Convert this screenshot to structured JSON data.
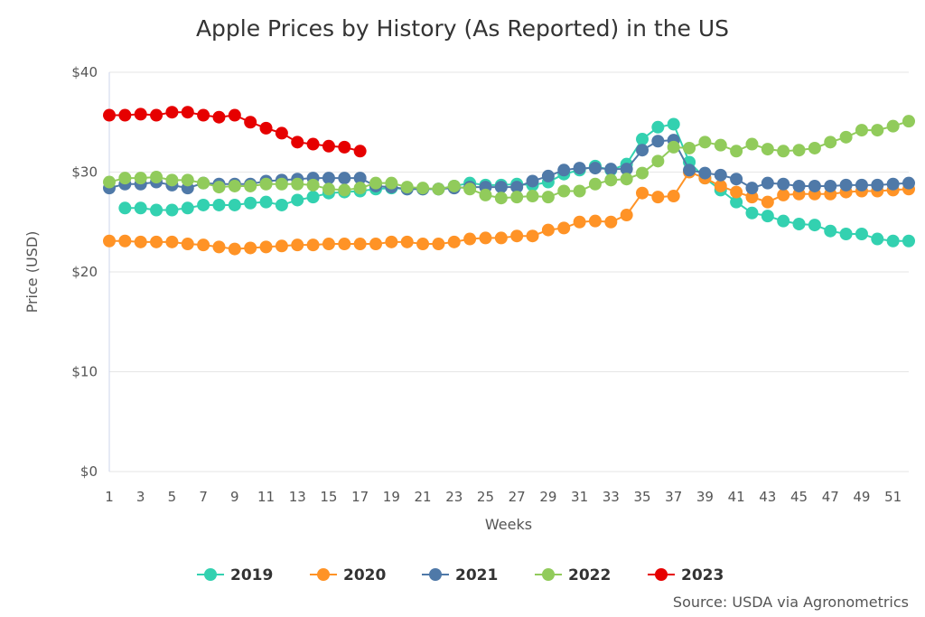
{
  "chart_data": {
    "type": "line",
    "title": "Apple Prices by History (As Reported) in the US",
    "xlabel": "Weeks",
    "ylabel": "Price (USD)",
    "source": "Source: USDA via Agronometrics",
    "xlim": [
      1,
      52
    ],
    "ylim": [
      0,
      40
    ],
    "x_tick_labels": [
      "1",
      "3",
      "5",
      "7",
      "9",
      "11",
      "13",
      "15",
      "17",
      "19",
      "21",
      "23",
      "25",
      "27",
      "29",
      "31",
      "33",
      "35",
      "37",
      "39",
      "41",
      "43",
      "45",
      "47",
      "49",
      "51"
    ],
    "y_ticks": [
      0,
      10,
      20,
      30,
      40
    ],
    "y_tick_labels": [
      "$0",
      "$10",
      "$20",
      "$30",
      "$40"
    ],
    "grid": true,
    "legend_position": "bottom",
    "series": [
      {
        "name": "2019",
        "color": "#33d1b0",
        "start_week": 2,
        "values": [
          26.4,
          26.4,
          26.2,
          26.2,
          26.4,
          26.7,
          26.7,
          26.7,
          26.9,
          27.0,
          26.7,
          27.2,
          27.5,
          27.9,
          28.0,
          28.1,
          28.3,
          28.4,
          28.3,
          28.3,
          28.3,
          28.6,
          28.9,
          28.7,
          28.7,
          28.8,
          28.7,
          29.0,
          29.8,
          30.2,
          30.6,
          30.2,
          30.8,
          33.3,
          34.5,
          34.8,
          31.0,
          29.4,
          28.2,
          27.0,
          25.9,
          25.6,
          25.1,
          24.8,
          24.7,
          24.1,
          23.8,
          23.8,
          23.3,
          23.1,
          23.1
        ]
      },
      {
        "name": "2020",
        "color": "#ff9326",
        "start_week": 1,
        "values": [
          23.1,
          23.1,
          23.0,
          23.0,
          23.0,
          22.8,
          22.7,
          22.5,
          22.3,
          22.4,
          22.5,
          22.6,
          22.7,
          22.7,
          22.8,
          22.8,
          22.8,
          22.8,
          23.0,
          23.0,
          22.8,
          22.8,
          23.0,
          23.3,
          23.4,
          23.4,
          23.6,
          23.6,
          24.2,
          24.4,
          25.0,
          25.1,
          25.0,
          25.7,
          27.9,
          27.5,
          27.6,
          30.0,
          29.4,
          28.6,
          28.0,
          27.5,
          27.0,
          27.7,
          27.8,
          27.8,
          27.8,
          28.0,
          28.1,
          28.1,
          28.2,
          28.3
        ]
      },
      {
        "name": "2021",
        "color": "#4f79a8",
        "start_week": 1,
        "values": [
          28.4,
          28.8,
          28.8,
          29.0,
          28.7,
          28.4,
          28.9,
          28.8,
          28.8,
          28.8,
          29.1,
          29.2,
          29.3,
          29.4,
          29.4,
          29.4,
          29.4,
          28.6,
          28.5,
          28.3,
          28.3,
          28.3,
          28.4,
          28.5,
          28.5,
          28.5,
          28.5,
          29.1,
          29.6,
          30.2,
          30.4,
          30.4,
          30.3,
          30.3,
          32.2,
          33.1,
          33.2,
          30.2,
          29.9,
          29.7,
          29.3,
          28.4,
          28.9,
          28.8,
          28.6,
          28.6,
          28.6,
          28.7,
          28.7,
          28.7,
          28.8,
          28.9
        ]
      },
      {
        "name": "2022",
        "color": "#91cb5b",
        "start_week": 1,
        "values": [
          29.0,
          29.4,
          29.4,
          29.5,
          29.2,
          29.2,
          28.9,
          28.5,
          28.6,
          28.6,
          28.8,
          28.8,
          28.8,
          28.7,
          28.3,
          28.2,
          28.4,
          28.9,
          28.9,
          28.5,
          28.4,
          28.3,
          28.6,
          28.3,
          27.7,
          27.4,
          27.5,
          27.6,
          27.5,
          28.1,
          28.1,
          28.8,
          29.2,
          29.3,
          29.9,
          31.1,
          32.5,
          32.4,
          33.0,
          32.7,
          32.1,
          32.8,
          32.3,
          32.1,
          32.2,
          32.4,
          33.0,
          33.5,
          34.2,
          34.2,
          34.6,
          35.1
        ]
      },
      {
        "name": "2023",
        "color": "#e60000",
        "start_week": 1,
        "values": [
          35.7,
          35.7,
          35.8,
          35.7,
          36.0,
          36.0,
          35.7,
          35.5,
          35.7,
          35.0,
          34.4,
          33.9,
          33.0,
          32.8,
          32.6,
          32.5,
          32.1
        ]
      }
    ]
  }
}
